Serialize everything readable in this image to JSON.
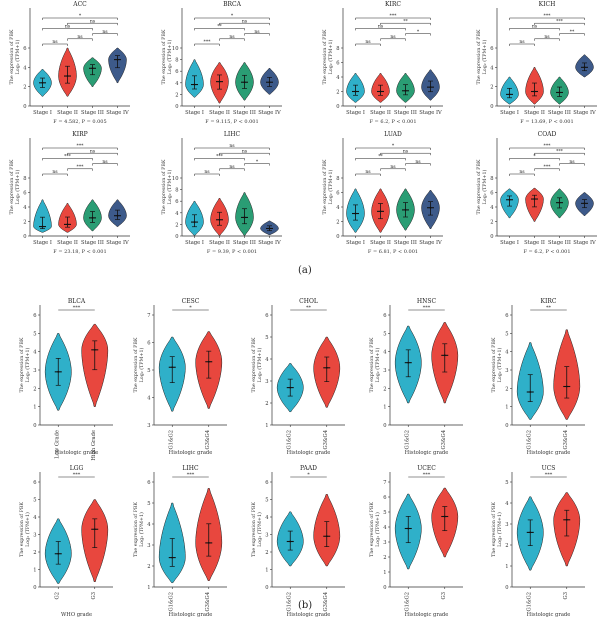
{
  "panel_labels": [
    "(a)",
    "(b)"
  ],
  "chart_data": [
    {
      "type": "violin",
      "title": "ACC",
      "ylabel": "The expression of PBK",
      "ylabel2": "Log₂ (TPM+1)",
      "categories": [
        "Stage I",
        "Stage II",
        "Stage III",
        "Stage IV"
      ],
      "ylim": [
        0,
        6
      ],
      "yticks": [
        0,
        2,
        4,
        6
      ],
      "colors": [
        "#2fb0c9",
        "#e8473e",
        "#2a9d74",
        "#3d5a8a"
      ],
      "medians": [
        2.4,
        3.1,
        3.9,
        4.8
      ],
      "mins": [
        1.0,
        1.0,
        2.0,
        2.4
      ],
      "maxs": [
        3.8,
        6.0,
        5.0,
        6.0
      ],
      "sig": [
        {
          "pair": [
            1,
            2
          ],
          "label": "ns"
        },
        {
          "pair": [
            1,
            3
          ],
          "label": "ns"
        },
        {
          "pair": [
            1,
            4
          ],
          "label": "*"
        },
        {
          "pair": [
            2,
            3
          ],
          "label": "ns"
        },
        {
          "pair": [
            2,
            4
          ],
          "label": "ns"
        },
        {
          "pair": [
            3,
            4
          ],
          "label": "ns"
        }
      ],
      "stat": "F = 4.582, P = 0.005"
    },
    {
      "type": "violin",
      "title": "BRCA",
      "ylabel": "The expression of PBK",
      "ylabel2": "Log₂ (TPM+1)",
      "categories": [
        "Stage I",
        "Stage II",
        "Stage III",
        "Stage IV"
      ],
      "ylim": [
        0,
        10
      ],
      "yticks": [
        0,
        2,
        4,
        6,
        8,
        10
      ],
      "colors": [
        "#2fb0c9",
        "#e8473e",
        "#2a9d74",
        "#3d5a8a"
      ],
      "medians": [
        3.7,
        4.2,
        4.1,
        4.1
      ],
      "mins": [
        1.5,
        0.5,
        1.0,
        2.0
      ],
      "maxs": [
        8.0,
        7.5,
        7.5,
        6.5
      ],
      "sig": [
        {
          "pair": [
            1,
            2
          ],
          "label": "***"
        },
        {
          "pair": [
            1,
            3
          ],
          "label": "**"
        },
        {
          "pair": [
            1,
            4
          ],
          "label": "*"
        },
        {
          "pair": [
            2,
            3
          ],
          "label": "ns"
        },
        {
          "pair": [
            2,
            4
          ],
          "label": "ns"
        },
        {
          "pair": [
            3,
            4
          ],
          "label": "ns"
        }
      ],
      "stat": "F = 9.115, P < 0.001"
    },
    {
      "type": "violin",
      "title": "KIRC",
      "ylabel": "The expression of PBK",
      "ylabel2": "Log₂ (TPM+1)",
      "categories": [
        "Stage I",
        "Stage II",
        "Stage III",
        "Stage IV"
      ],
      "ylim": [
        0,
        8
      ],
      "yticks": [
        0,
        2,
        4,
        6,
        8
      ],
      "colors": [
        "#2fb0c9",
        "#e8473e",
        "#2a9d74",
        "#3d5a8a"
      ],
      "medians": [
        2.0,
        2.0,
        2.1,
        2.6
      ],
      "mins": [
        0.5,
        0.5,
        0.5,
        0.8
      ],
      "maxs": [
        4.5,
        4.5,
        4.5,
        5.0
      ],
      "sig": [
        {
          "pair": [
            1,
            2
          ],
          "label": "ns"
        },
        {
          "pair": [
            1,
            3
          ],
          "label": "ns"
        },
        {
          "pair": [
            1,
            4
          ],
          "label": "***"
        },
        {
          "pair": [
            2,
            3
          ],
          "label": "ns"
        },
        {
          "pair": [
            2,
            4
          ],
          "label": "**"
        },
        {
          "pair": [
            3,
            4
          ],
          "label": "*"
        }
      ],
      "stat": "F = 6.2, P < 0.001"
    },
    {
      "type": "violin",
      "title": "KICH",
      "ylabel": "The expression of PBK",
      "ylabel2": "Log₂ (TPM+1)",
      "categories": [
        "Stage I",
        "Stage II",
        "Stage III",
        "Stage IV"
      ],
      "ylim": [
        0,
        6
      ],
      "yticks": [
        0,
        2,
        4,
        6
      ],
      "colors": [
        "#2fb0c9",
        "#e8473e",
        "#2a9d74",
        "#3d5a8a"
      ],
      "medians": [
        1.2,
        1.5,
        1.4,
        4.0
      ],
      "mins": [
        0.2,
        0.2,
        0.2,
        3.0
      ],
      "maxs": [
        3.0,
        4.0,
        3.0,
        5.3
      ],
      "sig": [
        {
          "pair": [
            1,
            2
          ],
          "label": "ns"
        },
        {
          "pair": [
            1,
            3
          ],
          "label": "ns"
        },
        {
          "pair": [
            1,
            4
          ],
          "label": "***"
        },
        {
          "pair": [
            2,
            3
          ],
          "label": "ns"
        },
        {
          "pair": [
            2,
            4
          ],
          "label": "***"
        },
        {
          "pair": [
            3,
            4
          ],
          "label": "**"
        }
      ],
      "stat": "F = 13.69, P < 0.001"
    },
    {
      "type": "violin",
      "title": "KIRP",
      "ylabel": "The expression of PBK",
      "ylabel2": "Log₂ (TPM+1)",
      "categories": [
        "Stage I",
        "Stage II",
        "Stage III",
        "Stage IV"
      ],
      "ylim": [
        0,
        8
      ],
      "yticks": [
        0,
        2,
        4,
        6,
        8
      ],
      "colors": [
        "#2fb0c9",
        "#e8473e",
        "#2a9d74",
        "#3d5a8a"
      ],
      "medians": [
        1.3,
        1.6,
        2.5,
        2.8
      ],
      "mins": [
        0.5,
        0.5,
        0.7,
        1.3
      ],
      "maxs": [
        5.0,
        4.5,
        5.0,
        5.0
      ],
      "sig": [
        {
          "pair": [
            1,
            2
          ],
          "label": "ns"
        },
        {
          "pair": [
            1,
            3
          ],
          "label": "***"
        },
        {
          "pair": [
            1,
            4
          ],
          "label": "***"
        },
        {
          "pair": [
            2,
            3
          ],
          "label": "***"
        },
        {
          "pair": [
            2,
            4
          ],
          "label": "ns"
        },
        {
          "pair": [
            3,
            4
          ],
          "label": "ns"
        }
      ],
      "stat": "F = 23.18, P < 0.001"
    },
    {
      "type": "violin",
      "title": "LIHC",
      "ylabel": "The expression of PBK",
      "ylabel2": "Log₂ (TPM+1)",
      "categories": [
        "Stage I",
        "Stage II",
        "Stage III",
        "Stage IV"
      ],
      "ylim": [
        0,
        10
      ],
      "yticks": [
        0,
        2,
        4,
        6,
        8,
        10
      ],
      "colors": [
        "#2fb0c9",
        "#e8473e",
        "#2a9d74",
        "#3d5a8a"
      ],
      "medians": [
        2.4,
        2.8,
        3.2,
        1.3
      ],
      "mins": [
        0.1,
        0.1,
        0.1,
        0.2
      ],
      "maxs": [
        6.0,
        6.5,
        7.5,
        2.6
      ],
      "sig": [
        {
          "pair": [
            1,
            2
          ],
          "label": "ns"
        },
        {
          "pair": [
            1,
            3
          ],
          "label": "***"
        },
        {
          "pair": [
            1,
            4
          ],
          "label": "ns"
        },
        {
          "pair": [
            2,
            3
          ],
          "label": "ns"
        },
        {
          "pair": [
            2,
            4
          ],
          "label": "ns"
        },
        {
          "pair": [
            3,
            4
          ],
          "label": "*"
        }
      ],
      "stat": "F = 9.39, P < 0.001"
    },
    {
      "type": "violin",
      "title": "LUAD",
      "ylabel": "The expression of PBK",
      "ylabel2": "Log₂ (TPM+1)",
      "categories": [
        "Stage I",
        "Stage II",
        "Stage III",
        "Stage IV"
      ],
      "ylim": [
        0,
        8
      ],
      "yticks": [
        0,
        2,
        4,
        6,
        8
      ],
      "colors": [
        "#2fb0c9",
        "#e8473e",
        "#2a9d74",
        "#3d5a8a"
      ],
      "medians": [
        3.1,
        3.4,
        3.6,
        3.9
      ],
      "mins": [
        0.5,
        0.5,
        0.8,
        1.0
      ],
      "maxs": [
        6.5,
        6.5,
        6.5,
        6.3
      ],
      "sig": [
        {
          "pair": [
            1,
            2
          ],
          "label": "ns"
        },
        {
          "pair": [
            1,
            3
          ],
          "label": "**"
        },
        {
          "pair": [
            1,
            4
          ],
          "label": "*"
        },
        {
          "pair": [
            2,
            3
          ],
          "label": "ns"
        },
        {
          "pair": [
            2,
            4
          ],
          "label": "ns"
        },
        {
          "pair": [
            3,
            4
          ],
          "label": "ns"
        }
      ],
      "stat": "F = 6.81, P < 0.001"
    },
    {
      "type": "violin",
      "title": "COAD",
      "ylabel": "The expression of PBK",
      "ylabel2": "Log₂ (TPM+1)",
      "categories": [
        "Stage I",
        "Stage II",
        "Stage III",
        "Stage IV"
      ],
      "ylim": [
        0,
        8
      ],
      "yticks": [
        0,
        2,
        4,
        6,
        8
      ],
      "colors": [
        "#2fb0c9",
        "#e8473e",
        "#2a9d74",
        "#3d5a8a"
      ],
      "medians": [
        5.0,
        5.1,
        4.6,
        4.5
      ],
      "mins": [
        2.5,
        2.0,
        2.5,
        2.8
      ],
      "maxs": [
        6.5,
        6.6,
        6.5,
        6.0
      ],
      "sig": [
        {
          "pair": [
            1,
            2
          ],
          "label": "ns"
        },
        {
          "pair": [
            1,
            3
          ],
          "label": "*"
        },
        {
          "pair": [
            1,
            4
          ],
          "label": "***"
        },
        {
          "pair": [
            2,
            3
          ],
          "label": "***"
        },
        {
          "pair": [
            2,
            4
          ],
          "label": "***"
        },
        {
          "pair": [
            3,
            4
          ],
          "label": "ns"
        }
      ],
      "stat": "F = 6.2, P < 0.001"
    },
    {
      "type": "violin",
      "title": "BLCA",
      "ylabel": "The expression of PBK",
      "ylabel2": "Log₂ (TPM+1)",
      "categories": [
        "Low Grade",
        "High Grade"
      ],
      "xlabel": "Histologic grade",
      "ylim": [
        0,
        6
      ],
      "yticks": [
        0,
        1,
        2,
        3,
        4,
        5,
        6
      ],
      "colors": [
        "#2fb0c9",
        "#e8473e"
      ],
      "medians": [
        2.9,
        4.1
      ],
      "mins": [
        0.8,
        1.0
      ],
      "maxs": [
        5.0,
        5.5
      ],
      "sig": [
        {
          "pair": [
            1,
            2
          ],
          "label": "***"
        }
      ]
    },
    {
      "type": "violin",
      "title": "CESC",
      "ylabel": "The expression of PBK",
      "ylabel2": "Log₂ (TPM+1)",
      "categories": [
        "G1&G2",
        "G3&G4"
      ],
      "xlabel": "Histologic grade",
      "ylim": [
        3,
        7
      ],
      "yticks": [
        3,
        4,
        5,
        6,
        7
      ],
      "colors": [
        "#2fb0c9",
        "#e8473e"
      ],
      "medians": [
        5.1,
        5.3
      ],
      "mins": [
        3.5,
        3.6
      ],
      "maxs": [
        6.2,
        6.4
      ],
      "sig": [
        {
          "pair": [
            1,
            2
          ],
          "label": "*"
        }
      ]
    },
    {
      "type": "violin",
      "title": "CHOL",
      "ylabel": "The expression of PBK",
      "ylabel2": "Log₂ (TPM+1)",
      "categories": [
        "G1&G2",
        "G3&G4"
      ],
      "xlabel": "Histologic grade",
      "ylim": [
        1,
        6
      ],
      "yticks": [
        1,
        2,
        3,
        4,
        5,
        6
      ],
      "colors": [
        "#2fb0c9",
        "#e8473e"
      ],
      "medians": [
        2.7,
        3.6
      ],
      "mins": [
        1.6,
        1.8
      ],
      "maxs": [
        3.8,
        5.0
      ],
      "sig": [
        {
          "pair": [
            1,
            2
          ],
          "label": "**"
        }
      ]
    },
    {
      "type": "violin",
      "title": "HNSC",
      "ylabel": "The expression of PBK",
      "ylabel2": "Log₂ (TPM+1)",
      "categories": [
        "G1&G2",
        "G3&G4"
      ],
      "xlabel": "Histologic grade",
      "ylim": [
        0,
        6
      ],
      "yticks": [
        0,
        1,
        2,
        3,
        4,
        5,
        6
      ],
      "colors": [
        "#2fb0c9",
        "#e8473e"
      ],
      "medians": [
        3.4,
        3.8
      ],
      "mins": [
        1.2,
        1.2
      ],
      "maxs": [
        5.4,
        5.6
      ],
      "sig": [
        {
          "pair": [
            1,
            2
          ],
          "label": "***"
        }
      ]
    },
    {
      "type": "violin",
      "title": "KIRC",
      "ylabel": "The expression of PBK",
      "ylabel2": "Log₂ (TPM+1)",
      "categories": [
        "G1&G2",
        "G3&G4"
      ],
      "xlabel": "Histologic grade",
      "ylim": [
        0,
        6
      ],
      "yticks": [
        0,
        1,
        2,
        3,
        4,
        5,
        6
      ],
      "colors": [
        "#2fb0c9",
        "#e8473e"
      ],
      "medians": [
        1.8,
        2.1
      ],
      "mins": [
        0.3,
        0.3
      ],
      "maxs": [
        4.5,
        5.2
      ],
      "sig": [
        {
          "pair": [
            1,
            2
          ],
          "label": "**"
        }
      ]
    },
    {
      "type": "violin",
      "title": "LGG",
      "ylabel": "The expression of PBK",
      "ylabel2": "Log₂ (TPM+1)",
      "categories": [
        "G2",
        "G3"
      ],
      "xlabel": "WHO grade",
      "ylim": [
        0,
        6
      ],
      "yticks": [
        0,
        1,
        2,
        3,
        4,
        5,
        6
      ],
      "colors": [
        "#2fb0c9",
        "#e8473e"
      ],
      "medians": [
        1.9,
        3.3
      ],
      "mins": [
        0.2,
        0.3
      ],
      "maxs": [
        3.9,
        5.0
      ],
      "sig": [
        {
          "pair": [
            1,
            2
          ],
          "label": "***"
        }
      ]
    },
    {
      "type": "violin",
      "title": "LIHC",
      "ylabel": "The expression of PBK",
      "ylabel2": "Log₂ (TPM+1)",
      "categories": [
        "G1&G2",
        "G3&G4"
      ],
      "xlabel": "Histologic grade",
      "ylim": [
        1,
        6
      ],
      "yticks": [
        1,
        2,
        3,
        4,
        5,
        6
      ],
      "colors": [
        "#2fb0c9",
        "#e8473e"
      ],
      "medians": [
        2.4,
        3.1
      ],
      "mins": [
        1.2,
        1.3
      ],
      "maxs": [
        5.0,
        5.7
      ],
      "sig": [
        {
          "pair": [
            1,
            2
          ],
          "label": "***"
        }
      ]
    },
    {
      "type": "violin",
      "title": "PAAD",
      "ylabel": "The expression of PBK",
      "ylabel2": "Log₂ (TPM+1)",
      "categories": [
        "G1&G2",
        "G3&G4"
      ],
      "xlabel": "Histologic grade",
      "ylim": [
        0,
        6
      ],
      "yticks": [
        0,
        1,
        2,
        3,
        4,
        5,
        6
      ],
      "colors": [
        "#2fb0c9",
        "#e8473e"
      ],
      "medians": [
        2.6,
        2.9
      ],
      "mins": [
        1.2,
        1.2
      ],
      "maxs": [
        4.3,
        5.3
      ],
      "sig": [
        {
          "pair": [
            1,
            2
          ],
          "label": "*"
        }
      ]
    },
    {
      "type": "violin",
      "title": "UCEC",
      "ylabel": "The expression of PBK",
      "ylabel2": "Log₂ (TPM+1)",
      "categories": [
        "G1&G2",
        "G3"
      ],
      "xlabel": "Histologic grade",
      "ylim": [
        0,
        7
      ],
      "yticks": [
        0,
        1,
        2,
        3,
        4,
        5,
        6,
        7
      ],
      "colors": [
        "#2fb0c9",
        "#e8473e"
      ],
      "medians": [
        3.9,
        4.7
      ],
      "mins": [
        1.2,
        2.0
      ],
      "maxs": [
        6.2,
        6.6
      ],
      "sig": [
        {
          "pair": [
            1,
            2
          ],
          "label": "***"
        }
      ]
    },
    {
      "type": "violin",
      "title": "UCS",
      "ylabel": "The expression of PBK",
      "ylabel2": "Log₂ (TPM+1)",
      "categories": [
        "G1&G2",
        "G3"
      ],
      "xlabel": "Histologic grade",
      "ylim": [
        0,
        5
      ],
      "yticks": [
        0,
        1,
        2,
        3,
        4,
        5
      ],
      "colors": [
        "#2fb0c9",
        "#e8473e"
      ],
      "medians": [
        2.6,
        3.2
      ],
      "mins": [
        0.8,
        1.0
      ],
      "maxs": [
        4.3,
        4.5
      ],
      "sig": [
        {
          "pair": [
            1,
            2
          ],
          "label": "***"
        }
      ]
    }
  ]
}
